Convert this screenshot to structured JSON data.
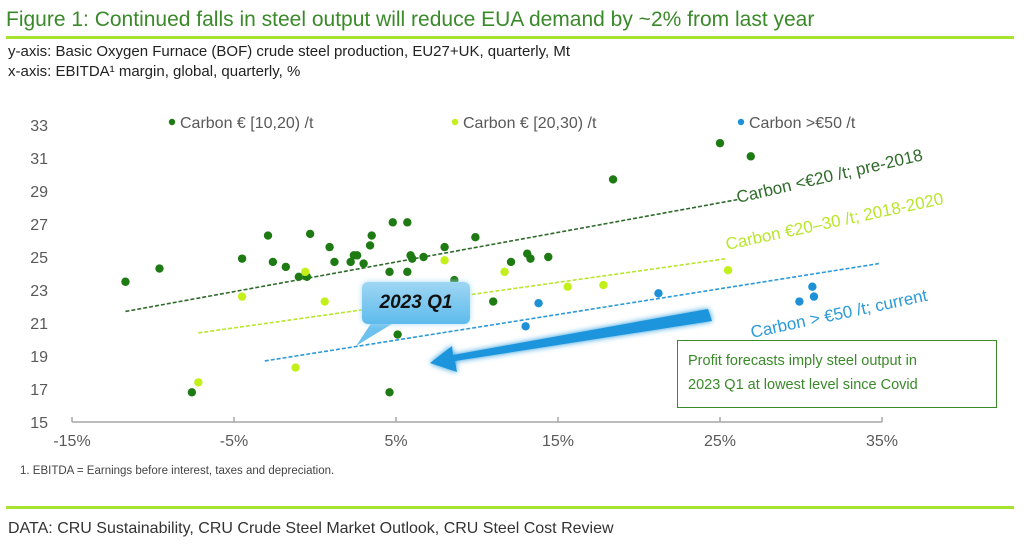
{
  "header": {
    "title": "Figure 1: Continued falls in steel output will reduce EUA demand by ~2% from last year",
    "y_axis_desc": "y-axis: Basic Oxygen Furnace (BOF) crude steel production, EU27+UK, quarterly, Mt",
    "x_axis_desc": "x-axis: EBITDA¹ margin, global, quarterly, %"
  },
  "footnote": "1. EBITDA = Earnings before interest, taxes and depreciation.",
  "source": "DATA: CRU Sustainability, CRU Crude Steel Market Outlook, CRU Steel Cost Review",
  "callout": {
    "label": "2023 Q1"
  },
  "annotation": {
    "line1": "Profit forecasts imply steel output in",
    "line2": "2023 Q1 at lowest level since Covid"
  },
  "colors": {
    "dark_green": "#1e7a12",
    "light_green": "#c3f01a",
    "blue": "#1e90d6",
    "title_green": "#3a8a2a",
    "rule_green": "#a6e22e"
  },
  "chart_data": {
    "type": "scatter",
    "title": "Figure 1: Continued falls in steel output will reduce EUA demand by ~2% from last year",
    "xlabel": "EBITDA margin, global, quarterly, %",
    "ylabel": "BOF crude steel production, EU27+UK, quarterly, Mt",
    "xlim": [
      -15,
      35
    ],
    "ylim": [
      15,
      33
    ],
    "x_ticks": [
      -15,
      -5,
      5,
      15,
      25,
      35
    ],
    "x_tick_labels": [
      "-15%",
      "-5%",
      "5%",
      "15%",
      "25%",
      "35%"
    ],
    "y_ticks": [
      15,
      17,
      19,
      21,
      23,
      25,
      27,
      29,
      31,
      33
    ],
    "y_tick_labels": [
      "15",
      "17",
      "19",
      "21",
      "23",
      "25",
      "27",
      "29",
      "31",
      "33"
    ],
    "grid": false,
    "legend_position": "top",
    "series": [
      {
        "name": "Carbon € [10,20) /t",
        "color": "#1e7a12",
        "points": [
          [
            -11.7,
            23.5
          ],
          [
            -9.6,
            24.3
          ],
          [
            -7.6,
            16.8
          ],
          [
            -4.5,
            24.9
          ],
          [
            -2.9,
            26.3
          ],
          [
            -2.6,
            24.7
          ],
          [
            -1.8,
            24.4
          ],
          [
            -1.0,
            23.8
          ],
          [
            -0.5,
            23.8
          ],
          [
            -0.3,
            26.4
          ],
          [
            0.9,
            25.6
          ],
          [
            1.2,
            24.7
          ],
          [
            2.2,
            24.7
          ],
          [
            2.4,
            25.1
          ],
          [
            2.6,
            25.1
          ],
          [
            3.0,
            24.6
          ],
          [
            3.4,
            25.7
          ],
          [
            3.5,
            26.3
          ],
          [
            4.8,
            27.1
          ],
          [
            5.7,
            27.1
          ],
          [
            4.6,
            24.1
          ],
          [
            5.7,
            24.1
          ],
          [
            5.9,
            25.1
          ],
          [
            6.0,
            24.9
          ],
          [
            6.7,
            25.0
          ],
          [
            8.0,
            25.6
          ],
          [
            8.6,
            23.6
          ],
          [
            9.9,
            26.2
          ],
          [
            11.0,
            22.3
          ],
          [
            12.1,
            24.7
          ],
          [
            13.1,
            25.2
          ],
          [
            13.3,
            24.9
          ],
          [
            14.4,
            25.0
          ],
          [
            5.1,
            20.3
          ],
          [
            4.6,
            16.8
          ],
          [
            18.4,
            29.7
          ],
          [
            25.0,
            31.9
          ],
          [
            26.9,
            31.1
          ]
        ]
      },
      {
        "name": "Carbon € [20,30) /t",
        "color": "#c3f01a",
        "points": [
          [
            -7.2,
            17.4
          ],
          [
            -4.5,
            22.6
          ],
          [
            -1.2,
            18.3
          ],
          [
            -0.6,
            24.1
          ],
          [
            0.6,
            22.3
          ],
          [
            8.0,
            24.8
          ],
          [
            11.7,
            24.1
          ],
          [
            15.6,
            23.2
          ],
          [
            17.8,
            23.3
          ],
          [
            25.5,
            24.2
          ]
        ]
      },
      {
        "name": "Carbon >€50 /t",
        "color": "#1e90d6",
        "points": [
          [
            13.0,
            20.8
          ],
          [
            13.8,
            22.2
          ],
          [
            21.2,
            22.8
          ],
          [
            29.9,
            22.3
          ],
          [
            30.7,
            23.2
          ],
          [
            30.8,
            22.6
          ]
        ]
      }
    ],
    "trend_lines": [
      {
        "label": "Carbon <€20 /t; pre-2018",
        "color": "#2e6b2a",
        "from": [
          -11.7,
          21.7
        ],
        "to": [
          26.2,
          28.5
        ]
      },
      {
        "label": "Carbon €20–30 /t; 2018-2020",
        "color": "#b8e62a",
        "from": [
          -7.2,
          20.4
        ],
        "to": [
          25.4,
          24.9
        ]
      },
      {
        "label": "Carbon > €50 /t; current",
        "color": "#2a9ad8",
        "from": [
          -3.1,
          18.7
        ],
        "to": [
          34.8,
          24.6
        ]
      }
    ],
    "annotations": [
      "2023 Q1",
      "Profit forecasts imply steel output in 2023 Q1 at lowest level since Covid"
    ]
  }
}
